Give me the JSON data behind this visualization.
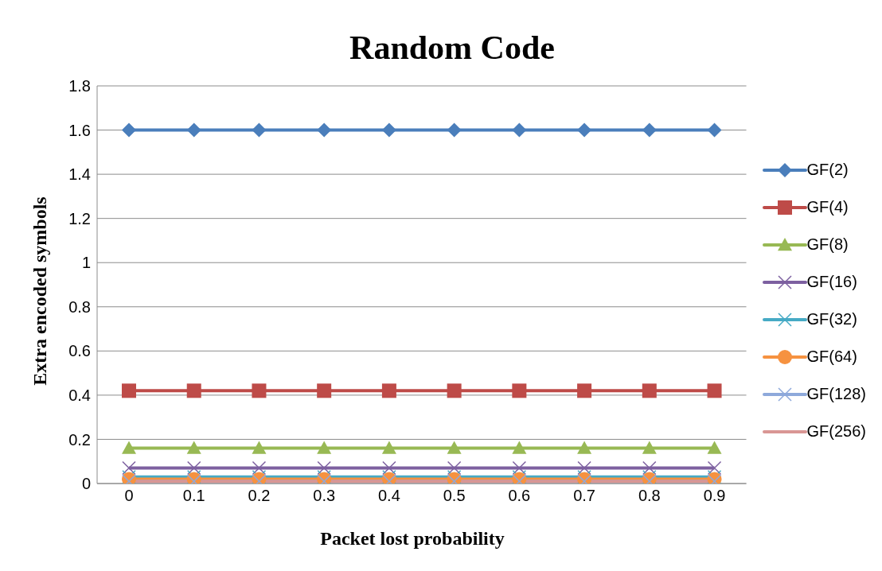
{
  "chart_data": {
    "type": "line",
    "title": "Random Code",
    "xlabel": "Packet lost probability",
    "ylabel": "Extra encoded symbols",
    "categories": [
      "0",
      "0.1",
      "0.2",
      "0.3",
      "0.4",
      "0.5",
      "0.6",
      "0.7",
      "0.8",
      "0.9"
    ],
    "ylim": [
      0,
      1.8
    ],
    "yticks": [
      0,
      0.2,
      0.4,
      0.6,
      0.8,
      1,
      1.2,
      1.4,
      1.6,
      1.8
    ],
    "grid": "y",
    "legend": "right",
    "series": [
      {
        "name": "GF(2)",
        "color": "#4a7ebb",
        "marker": "diamond",
        "values": [
          1.6,
          1.6,
          1.6,
          1.6,
          1.6,
          1.6,
          1.6,
          1.6,
          1.6,
          1.6
        ]
      },
      {
        "name": "GF(4)",
        "color": "#be4b48",
        "marker": "square",
        "values": [
          0.42,
          0.42,
          0.42,
          0.42,
          0.42,
          0.42,
          0.42,
          0.42,
          0.42,
          0.42
        ]
      },
      {
        "name": "GF(8)",
        "color": "#98b954",
        "marker": "triangle",
        "values": [
          0.16,
          0.16,
          0.16,
          0.16,
          0.16,
          0.16,
          0.16,
          0.16,
          0.16,
          0.16
        ]
      },
      {
        "name": "GF(16)",
        "color": "#7d60a0",
        "marker": "cross",
        "values": [
          0.07,
          0.07,
          0.07,
          0.07,
          0.07,
          0.07,
          0.07,
          0.07,
          0.07,
          0.07
        ]
      },
      {
        "name": "GF(32)",
        "color": "#46aac5",
        "marker": "cross",
        "values": [
          0.03,
          0.03,
          0.03,
          0.03,
          0.03,
          0.03,
          0.03,
          0.03,
          0.03,
          0.03
        ]
      },
      {
        "name": "GF(64)",
        "color": "#f69240",
        "marker": "circle",
        "values": [
          0.02,
          0.02,
          0.02,
          0.02,
          0.02,
          0.02,
          0.02,
          0.02,
          0.02,
          0.02
        ]
      },
      {
        "name": "GF(128)",
        "color": "#8ea9db",
        "marker": "cross",
        "values": [
          0.01,
          0.01,
          0.01,
          0.01,
          0.01,
          0.01,
          0.01,
          0.01,
          0.01,
          0.01
        ]
      },
      {
        "name": "GF(256)",
        "color": "#d99694",
        "marker": "none",
        "values": [
          0.01,
          0.01,
          0.01,
          0.01,
          0.01,
          0.01,
          0.01,
          0.01,
          0.01,
          0.01
        ]
      }
    ]
  }
}
